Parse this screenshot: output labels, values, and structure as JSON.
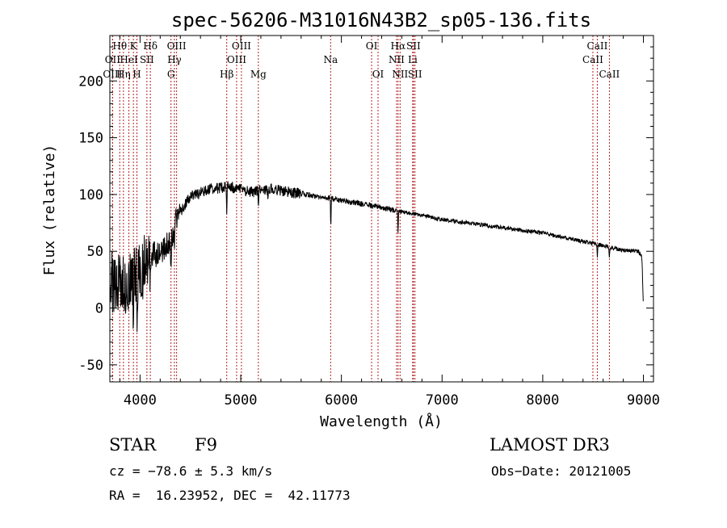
{
  "chart_data": {
    "type": "line",
    "title": "spec-56206-M31016N43B2_sp05-136.fits",
    "xlabel": "Wavelength (Å)",
    "ylabel": "Flux (relative)",
    "xlim": [
      3700,
      9100
    ],
    "ylim": [
      -65,
      240
    ],
    "x_ticks": [
      4000,
      5000,
      6000,
      7000,
      8000,
      9000
    ],
    "y_ticks": [
      -50,
      0,
      50,
      100,
      150,
      200
    ],
    "continuum": [
      {
        "x": 3700,
        "y": 25
      },
      {
        "x": 3800,
        "y": 20
      },
      {
        "x": 3900,
        "y": 25
      },
      {
        "x": 4000,
        "y": 30
      },
      {
        "x": 4100,
        "y": 45
      },
      {
        "x": 4200,
        "y": 50
      },
      {
        "x": 4300,
        "y": 60
      },
      {
        "x": 4350,
        "y": 75
      },
      {
        "x": 4400,
        "y": 85
      },
      {
        "x": 4500,
        "y": 98
      },
      {
        "x": 4700,
        "y": 105
      },
      {
        "x": 4900,
        "y": 107
      },
      {
        "x": 5100,
        "y": 102
      },
      {
        "x": 5300,
        "y": 105
      },
      {
        "x": 5500,
        "y": 102
      },
      {
        "x": 5800,
        "y": 98
      },
      {
        "x": 6000,
        "y": 95
      },
      {
        "x": 6300,
        "y": 90
      },
      {
        "x": 6600,
        "y": 85
      },
      {
        "x": 7000,
        "y": 78
      },
      {
        "x": 7500,
        "y": 72
      },
      {
        "x": 8000,
        "y": 66
      },
      {
        "x": 8500,
        "y": 57
      },
      {
        "x": 8800,
        "y": 51
      },
      {
        "x": 8950,
        "y": 50
      },
      {
        "x": 8985,
        "y": 45
      },
      {
        "x": 9000,
        "y": 0
      }
    ],
    "absorption_features": [
      {
        "x": 3934,
        "depth": 40
      },
      {
        "x": 3969,
        "depth": 35
      },
      {
        "x": 4102,
        "depth": 18
      },
      {
        "x": 4307,
        "depth": 28
      },
      {
        "x": 4341,
        "depth": 15
      },
      {
        "x": 4861,
        "depth": 20
      },
      {
        "x": 5175,
        "depth": 12
      },
      {
        "x": 5270,
        "depth": 8
      },
      {
        "x": 5895,
        "depth": 22
      },
      {
        "x": 6563,
        "depth": 18
      },
      {
        "x": 8542,
        "depth": 10
      },
      {
        "x": 8662,
        "depth": 9
      }
    ],
    "spectral_lines": [
      {
        "name": "Hθ",
        "x": 3798,
        "row": 0
      },
      {
        "name": "OII",
        "x": 3727,
        "row": 1
      },
      {
        "name": "OIII",
        "x": 3727,
        "row": 2
      },
      {
        "name": "K",
        "x": 3934,
        "row": 0
      },
      {
        "name": "HeI",
        "x": 3889,
        "row": 1
      },
      {
        "name": "Hη",
        "x": 3835,
        "row": 2
      },
      {
        "name": "SII",
        "x": 4068,
        "row": 1
      },
      {
        "name": "H",
        "x": 3969,
        "row": 2
      },
      {
        "name": "Hδ",
        "x": 4102,
        "row": 0
      },
      {
        "name": "OIII",
        "x": 4363,
        "row": 0
      },
      {
        "name": "Hγ",
        "x": 4341,
        "row": 1
      },
      {
        "name": "G",
        "x": 4307,
        "row": 2
      },
      {
        "name": "Hβ",
        "x": 4861,
        "row": 2
      },
      {
        "name": "OIII",
        "x": 5007,
        "row": 0
      },
      {
        "name": "OIII",
        "x": 4959,
        "row": 1
      },
      {
        "name": "Mg",
        "x": 5175,
        "row": 2
      },
      {
        "name": "Na",
        "x": 5893,
        "row": 1
      },
      {
        "name": "OI",
        "x": 6300,
        "row": 0
      },
      {
        "name": "OI",
        "x": 6364,
        "row": 2
      },
      {
        "name": "Hα",
        "x": 6563,
        "row": 0
      },
      {
        "name": "NII",
        "x": 6548,
        "row": 1
      },
      {
        "name": "NII",
        "x": 6583,
        "row": 2
      },
      {
        "name": "SII",
        "x": 6716,
        "row": 0
      },
      {
        "name": "Li",
        "x": 6708,
        "row": 1
      },
      {
        "name": "SII",
        "x": 6731,
        "row": 2
      },
      {
        "name": "CaII",
        "x": 8542,
        "row": 0
      },
      {
        "name": "CaII",
        "x": 8498,
        "row": 1
      },
      {
        "name": "CaII",
        "x": 8662,
        "row": 2
      }
    ]
  },
  "info": {
    "class_label": "STAR",
    "subclass": "F9",
    "survey": "LAMOST DR3",
    "cz_text": "cz = −78.6 ± 5.3 km/s",
    "obs_date_text": "Obs−Date: 20121005",
    "coords_text": "RA =  16.23952, DEC =  42.11773"
  },
  "colors": {
    "spectrum": "#000000",
    "marker_lines": "#b22222",
    "axes": "#000000"
  }
}
